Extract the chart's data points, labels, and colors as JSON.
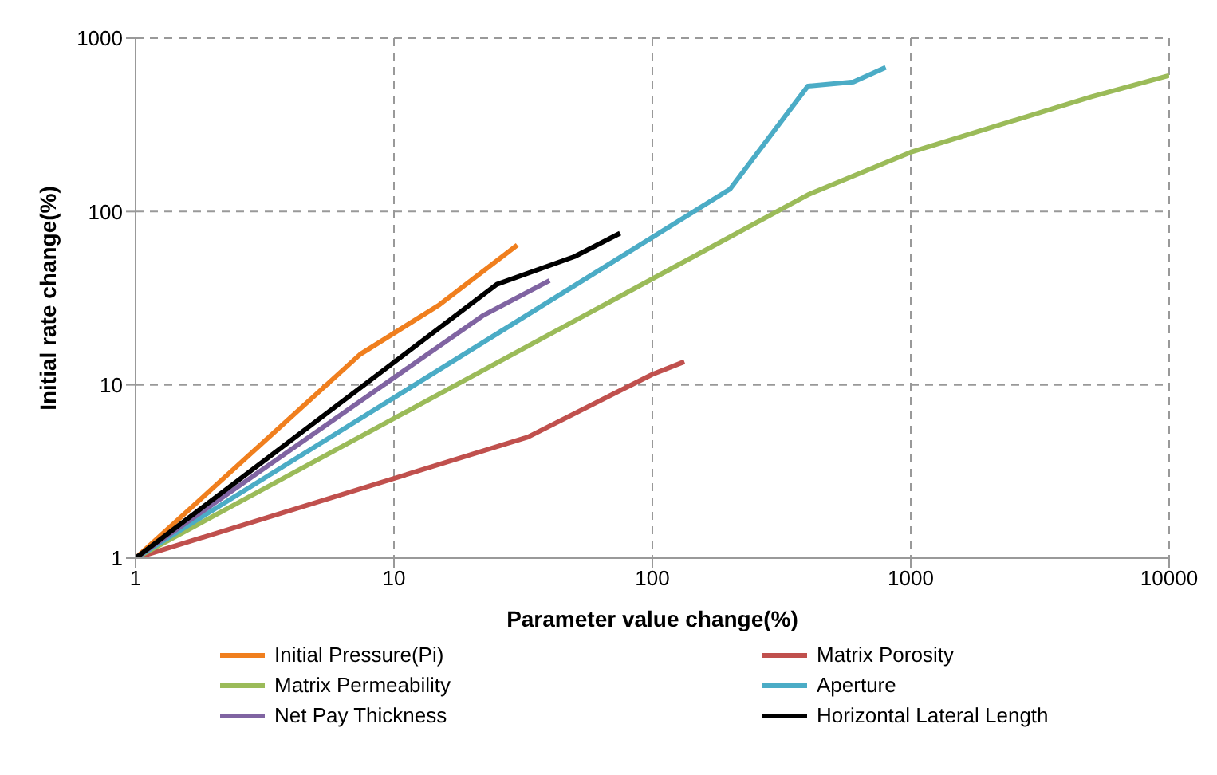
{
  "chart_data": {
    "type": "line",
    "xlabel": "Parameter value change(%)",
    "ylabel": "Initial rate change(%)",
    "log": "xy",
    "xlim": [
      1,
      10000
    ],
    "xticks": [
      1,
      10,
      100,
      1000,
      10000
    ],
    "ylim": [
      1,
      1000
    ],
    "yticks": [
      1,
      10,
      100,
      1000
    ],
    "grid": true,
    "legend": "bottom",
    "marker": "none",
    "line_style": "solid",
    "series": [
      {
        "name": "Initial Pressure(Pi)",
        "color": "#f07f1e",
        "x": [
          1,
          7.4,
          15,
          30
        ],
        "values": [
          1,
          15,
          29,
          64
        ]
      },
      {
        "name": "Matrix Porosity",
        "color": "#c0504d",
        "x": [
          1,
          33,
          100,
          133
        ],
        "values": [
          1,
          5,
          11.5,
          13.6
        ]
      },
      {
        "name": "Matrix Permeability",
        "color": "#9bbb59",
        "x": [
          1,
          400,
          1000,
          5000,
          10000
        ],
        "values": [
          1,
          125,
          220,
          460,
          610
        ]
      },
      {
        "name": "Aperture",
        "color": "#4bacc6",
        "x": [
          1,
          200,
          400,
          600,
          800
        ],
        "values": [
          1,
          135,
          530,
          560,
          680
        ]
      },
      {
        "name": "Net Pay Thickness",
        "color": "#8064a2",
        "x": [
          1,
          22,
          40
        ],
        "values": [
          1,
          25,
          40
        ]
      },
      {
        "name": "Horizontal Lateral Length",
        "color": "#000000",
        "x": [
          1,
          25,
          50,
          75
        ],
        "values": [
          1,
          38,
          55,
          75
        ]
      }
    ]
  }
}
